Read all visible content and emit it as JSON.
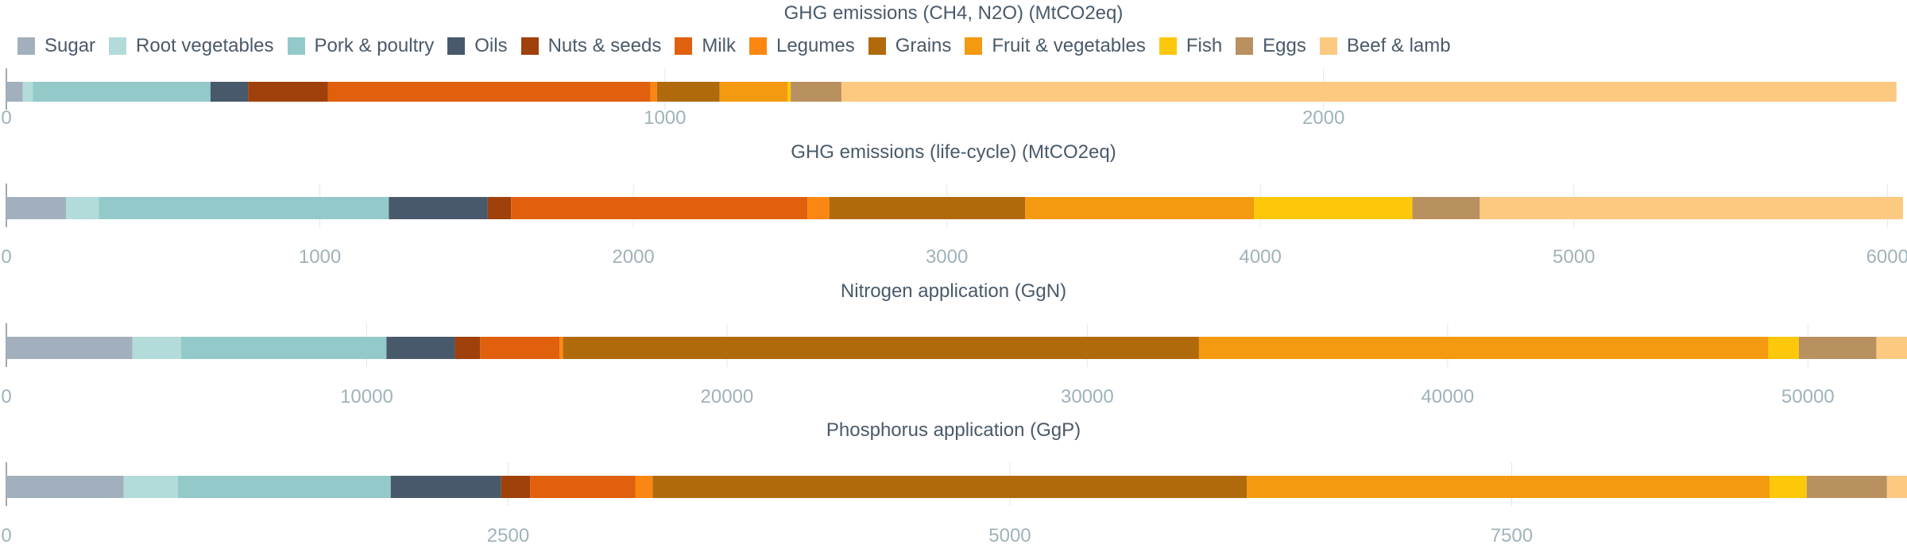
{
  "legend": {
    "items": [
      {
        "label": "Sugar",
        "color": "#a2b0bd"
      },
      {
        "label": "Root vegetables",
        "color": "#b2dbd9"
      },
      {
        "label": "Pork & poultry",
        "color": "#93c9c9"
      },
      {
        "label": "Oils",
        "color": "#47596b"
      },
      {
        "label": "Nuts & seeds",
        "color": "#a0400b"
      },
      {
        "label": "Milk",
        "color": "#e0600d"
      },
      {
        "label": "Legumes",
        "color": "#fb8712"
      },
      {
        "label": "Grains",
        "color": "#b06a0b"
      },
      {
        "label": "Fruit & vegetables",
        "color": "#f39a10"
      },
      {
        "label": "Fish",
        "color": "#fec80a"
      },
      {
        "label": "Eggs",
        "color": "#b99060"
      },
      {
        "label": "Beef & lamb",
        "color": "#fcc981"
      }
    ]
  },
  "chart_data": [
    {
      "type": "bar",
      "orientation": "horizontal-stacked",
      "title": "GHG emissions (CH4, N2O) (MtCO2eq)",
      "xlim": [
        0,
        2880
      ],
      "ticks": [
        0,
        1000,
        2000
      ],
      "tick_labels": [
        "0",
        "1000",
        "2000"
      ],
      "grid": true,
      "series": [
        {
          "name": "Sugar",
          "value": 25
        },
        {
          "name": "Root vegetables",
          "value": 15
        },
        {
          "name": "Pork & poultry",
          "value": 270
        },
        {
          "name": "Oils",
          "value": 57
        },
        {
          "name": "Nuts & seeds",
          "value": 121
        },
        {
          "name": "Milk",
          "value": 490
        },
        {
          "name": "Legumes",
          "value": 10
        },
        {
          "name": "Grains",
          "value": 95
        },
        {
          "name": "Fruit & vegetables",
          "value": 103
        },
        {
          "name": "Fish",
          "value": 5
        },
        {
          "name": "Eggs",
          "value": 77
        },
        {
          "name": "Beef & lamb",
          "value": 1602
        }
      ]
    },
    {
      "type": "bar",
      "orientation": "horizontal-stacked",
      "title": "GHG emissions (life-cycle) (MtCO2eq)",
      "xlim": [
        0,
        6050
      ],
      "ticks": [
        0,
        1000,
        2000,
        3000,
        4000,
        5000,
        6000
      ],
      "tick_labels": [
        "0",
        "1000",
        "2000",
        "3000",
        "4000",
        "5000",
        "6000"
      ],
      "grid": true,
      "series": [
        {
          "name": "Sugar",
          "value": 190
        },
        {
          "name": "Root vegetables",
          "value": 105
        },
        {
          "name": "Pork & poultry",
          "value": 925
        },
        {
          "name": "Oils",
          "value": 315
        },
        {
          "name": "Nuts & seeds",
          "value": 75
        },
        {
          "name": "Milk",
          "value": 945
        },
        {
          "name": "Legumes",
          "value": 70
        },
        {
          "name": "Grains",
          "value": 625
        },
        {
          "name": "Fruit & vegetables",
          "value": 730
        },
        {
          "name": "Fish",
          "value": 505
        },
        {
          "name": "Eggs",
          "value": 215
        },
        {
          "name": "Beef & lamb",
          "value": 1350
        }
      ]
    },
    {
      "type": "bar",
      "orientation": "horizontal-stacked",
      "title": "Nitrogen application (GgN)",
      "xlim": [
        0,
        52640
      ],
      "ticks": [
        0,
        10000,
        20000,
        30000,
        40000,
        50000
      ],
      "tick_labels": [
        "0",
        "10000",
        "20000",
        "30000",
        "40000",
        "50000"
      ],
      "grid": true,
      "series": [
        {
          "name": "Sugar",
          "value": 3500
        },
        {
          "name": "Root vegetables",
          "value": 1350
        },
        {
          "name": "Pork & poultry",
          "value": 5700
        },
        {
          "name": "Oils",
          "value": 1900
        },
        {
          "name": "Nuts & seeds",
          "value": 700
        },
        {
          "name": "Milk",
          "value": 2200
        },
        {
          "name": "Legumes",
          "value": 100
        },
        {
          "name": "Grains",
          "value": 17650
        },
        {
          "name": "Fruit & vegetables",
          "value": 15800
        },
        {
          "name": "Fish",
          "value": 850
        },
        {
          "name": "Eggs",
          "value": 2150
        },
        {
          "name": "Beef & lamb",
          "value": 940
        }
      ]
    },
    {
      "type": "bar",
      "orientation": "horizontal-stacked",
      "title": "Phosphorus application (GgP)",
      "xlim": [
        0,
        9450
      ],
      "ticks": [
        0,
        2500,
        5000,
        7500
      ],
      "tick_labels": [
        "0",
        "2500",
        "5000",
        "7500"
      ],
      "grid": true,
      "series": [
        {
          "name": "Sugar",
          "value": 585
        },
        {
          "name": "Root vegetables",
          "value": 270
        },
        {
          "name": "Pork & poultry",
          "value": 1060
        },
        {
          "name": "Oils",
          "value": 550
        },
        {
          "name": "Nuts & seeds",
          "value": 145
        },
        {
          "name": "Milk",
          "value": 525
        },
        {
          "name": "Legumes",
          "value": 85
        },
        {
          "name": "Grains",
          "value": 2960
        },
        {
          "name": "Fruit & vegetables",
          "value": 2605
        },
        {
          "name": "Fish",
          "value": 185
        },
        {
          "name": "Eggs",
          "value": 400
        },
        {
          "name": "Beef & lamb",
          "value": 180
        }
      ]
    }
  ]
}
